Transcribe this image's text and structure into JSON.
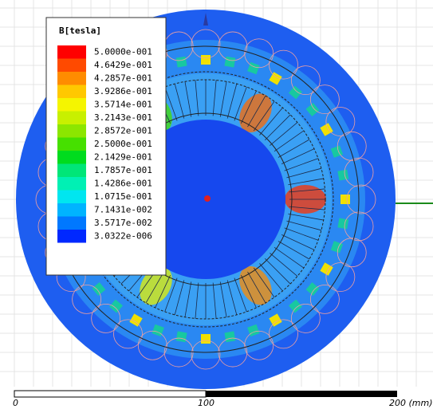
{
  "legend": {
    "title": "B[tesla]",
    "entries": [
      {
        "label": "5.0000e-001",
        "color": "#ff0000"
      },
      {
        "label": "4.6429e-001",
        "color": "#ff4a00"
      },
      {
        "label": "4.2857e-001",
        "color": "#ff8c00"
      },
      {
        "label": "3.9286e-001",
        "color": "#ffc800"
      },
      {
        "label": "3.5714e-001",
        "color": "#f5f500"
      },
      {
        "label": "3.2143e-001",
        "color": "#c8f000"
      },
      {
        "label": "2.8572e-001",
        "color": "#8ce600"
      },
      {
        "label": "2.5000e-001",
        "color": "#46e000"
      },
      {
        "label": "2.1429e-001",
        "color": "#00dc1e"
      },
      {
        "label": "1.7857e-001",
        "color": "#00e678"
      },
      {
        "label": "1.4286e-001",
        "color": "#00f0b4"
      },
      {
        "label": "1.0715e-001",
        "color": "#00e6f0"
      },
      {
        "label": "7.1431e-002",
        "color": "#00b4ff"
      },
      {
        "label": "3.5717e-002",
        "color": "#0078ff"
      },
      {
        "label": "3.0322e-006",
        "color": "#0028ff"
      }
    ]
  },
  "scale_bar": {
    "labels": [
      "0",
      "100",
      "200 (mm)"
    ]
  }
}
